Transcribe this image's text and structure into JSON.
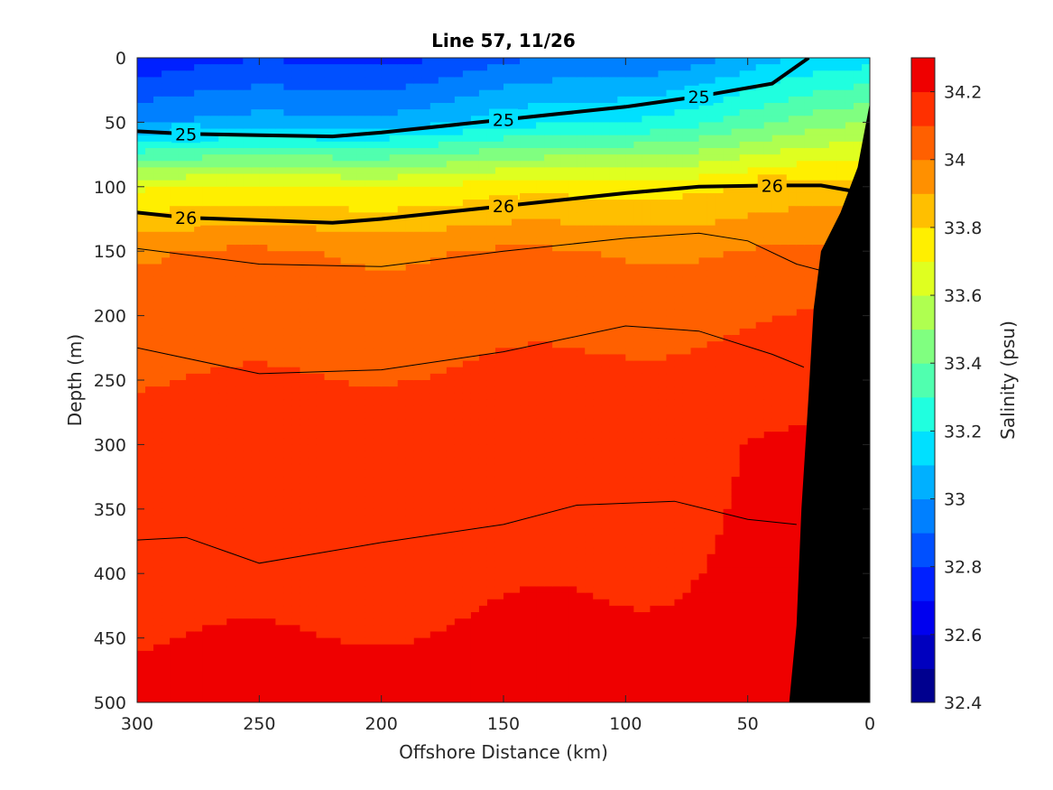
{
  "chart_data": {
    "type": "heatmap",
    "title": "Line 57, 11/26",
    "xlabel": "Offshore Distance (km)",
    "ylabel": "Depth (m)",
    "xlim": [
      300,
      0
    ],
    "ylim": [
      0,
      500
    ],
    "x_reversed": true,
    "y_reversed": true,
    "xticks": [
      300,
      250,
      200,
      150,
      100,
      50,
      0
    ],
    "yticks": [
      0,
      50,
      100,
      150,
      200,
      250,
      300,
      350,
      400,
      450,
      500
    ],
    "colorbar": {
      "label": "Salinity (psu)",
      "range": [
        32.4,
        34.3
      ],
      "ticks": [
        32.4,
        32.6,
        32.8,
        33.0,
        33.2,
        33.4,
        33.6,
        33.8,
        34.0,
        34.2
      ],
      "tick_labels": [
        "32.4",
        "32.6",
        "32.8",
        "33",
        "33.2",
        "33.4",
        "33.6",
        "33.8",
        "34",
        "34.2"
      ],
      "levels": [
        32.4,
        32.5,
        32.6,
        32.7,
        32.8,
        32.9,
        33.0,
        33.1,
        33.2,
        33.3,
        33.4,
        33.5,
        33.6,
        33.7,
        33.8,
        33.9,
        34.0,
        34.1,
        34.2,
        34.3
      ],
      "colors": [
        "#00008f",
        "#0000bf",
        "#0000ef",
        "#0020ff",
        "#0050ff",
        "#0080ff",
        "#00b0ff",
        "#00e0ff",
        "#20ffdf",
        "#50ffaf",
        "#80ff80",
        "#afff50",
        "#dfff20",
        "#ffef00",
        "#ffbf00",
        "#ff9000",
        "#ff6000",
        "#ff3000",
        "#ef0000",
        "#bf0000"
      ]
    },
    "salinity_field": {
      "description_units": "salinity (psu) vs offshore distance (km) and depth (m)",
      "levels_by_depth": [
        {
          "depth": 0,
          "salinity_offshore": 32.75,
          "salinity_nearshore": 33.15
        },
        {
          "depth": 50,
          "salinity_offshore": 33.0,
          "salinity_nearshore": 33.5
        },
        {
          "depth": 100,
          "salinity_offshore": 33.7,
          "salinity_nearshore": 33.85
        },
        {
          "depth": 150,
          "salinity_offshore": 34.0,
          "salinity_nearshore": 34.0
        },
        {
          "depth": 200,
          "salinity_offshore": 34.05,
          "salinity_nearshore": 34.1
        },
        {
          "depth": 300,
          "salinity_offshore": 34.15,
          "salinity_nearshore": 34.22
        },
        {
          "depth": 400,
          "salinity_offshore": 34.18,
          "salinity_nearshore": 34.22
        },
        {
          "depth": 500,
          "salinity_offshore": 34.22,
          "salinity_nearshore": 34.22
        }
      ]
    },
    "density_contours": [
      {
        "label": "25",
        "bold": true,
        "points": [
          [
            300,
            57
          ],
          [
            280,
            59
          ],
          [
            250,
            60
          ],
          [
            220,
            61
          ],
          [
            200,
            58
          ],
          [
            150,
            48
          ],
          [
            100,
            38
          ],
          [
            70,
            30
          ],
          [
            40,
            20
          ],
          [
            25,
            0
          ]
        ]
      },
      {
        "label": "26",
        "bold": true,
        "points": [
          [
            300,
            120
          ],
          [
            280,
            124
          ],
          [
            250,
            126
          ],
          [
            220,
            128
          ],
          [
            200,
            125
          ],
          [
            150,
            115
          ],
          [
            100,
            105
          ],
          [
            70,
            100
          ],
          [
            40,
            99
          ],
          [
            20,
            99
          ],
          [
            8,
            103
          ]
        ]
      },
      {
        "label": "",
        "bold": false,
        "points": [
          [
            300,
            148
          ],
          [
            250,
            160
          ],
          [
            200,
            162
          ],
          [
            150,
            150
          ],
          [
            100,
            140
          ],
          [
            70,
            136
          ],
          [
            50,
            142
          ],
          [
            30,
            160
          ],
          [
            20,
            165
          ]
        ]
      },
      {
        "label": "",
        "bold": false,
        "points": [
          [
            300,
            225
          ],
          [
            250,
            245
          ],
          [
            200,
            242
          ],
          [
            150,
            228
          ],
          [
            100,
            208
          ],
          [
            70,
            212
          ],
          [
            40,
            230
          ],
          [
            27,
            240
          ]
        ]
      },
      {
        "label": "",
        "bold": false,
        "points": [
          [
            300,
            374
          ],
          [
            280,
            372
          ],
          [
            250,
            392
          ],
          [
            200,
            376
          ],
          [
            150,
            362
          ],
          [
            120,
            347
          ],
          [
            80,
            344
          ],
          [
            50,
            358
          ],
          [
            30,
            362
          ]
        ]
      }
    ],
    "bathymetry": {
      "description": "seafloor (black) near shore",
      "points": [
        [
          33,
          500
        ],
        [
          30,
          440
        ],
        [
          28,
          350
        ],
        [
          25,
          260
        ],
        [
          23,
          195
        ],
        [
          20,
          150
        ],
        [
          12,
          120
        ],
        [
          5,
          85
        ],
        [
          0,
          35
        ]
      ]
    }
  }
}
